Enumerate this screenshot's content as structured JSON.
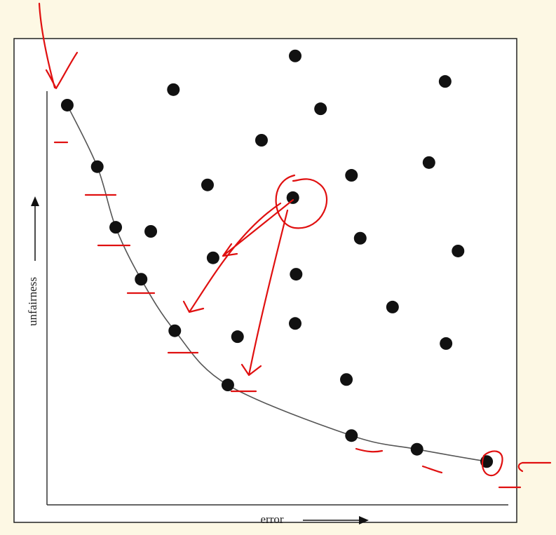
{
  "chart_data": {
    "type": "scatter",
    "x_label": "error",
    "y_label": "unfairness",
    "xlim": [
      0,
      100
    ],
    "ylim": [
      0,
      100
    ],
    "series": [
      {
        "color": "#111111",
        "line": true,
        "line_color": "#555555",
        "x": [
          4.4,
          10.9,
          14.9,
          20.4,
          27.7,
          39.2,
          66.0,
          80.2,
          95.3
        ],
        "values": [
          87.7,
          74.2,
          60.9,
          49.5,
          38.2,
          26.3,
          15.2,
          12.2,
          9.5
        ]
      },
      {
        "color": "#111111",
        "line": false,
        "x": [
          53.8,
          86.3,
          27.4,
          59.3,
          46.5,
          82.8,
          66.0,
          34.8,
          53.3,
          22.5,
          67.9,
          89.1,
          36.0,
          54.0,
          74.9,
          53.8,
          41.3,
          86.5,
          64.9
        ],
        "values": [
          98.5,
          92.9,
          91.1,
          86.9,
          80.0,
          75.1,
          72.3,
          70.2,
          67.4,
          60.0,
          58.5,
          55.7,
          54.2,
          50.6,
          43.4,
          39.8,
          36.9,
          35.4,
          27.5
        ]
      }
    ]
  }
}
